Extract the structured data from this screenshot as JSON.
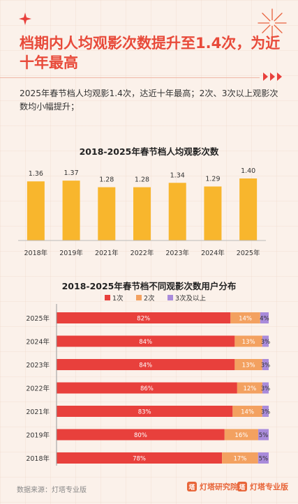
{
  "header": {
    "title": "档期内人均观影次数提升至1.4次，为近十年最高",
    "subtitle": "2025年春节档人均观影1.4次，达近十年最高；2次、3次以上观影次数均小幅提升；"
  },
  "chart_data": [
    {
      "type": "bar",
      "title": "2018-2025年春节档人均观影次数",
      "categories": [
        "2018年",
        "2019年",
        "2021年",
        "2022年",
        "2023年",
        "2024年",
        "2025年"
      ],
      "values": [
        1.36,
        1.37,
        1.28,
        1.28,
        1.34,
        1.29,
        1.4
      ],
      "value_labels": [
        "1.36",
        "1.37",
        "1.28",
        "1.28",
        "1.34",
        "1.29",
        "1.40"
      ],
      "colors": [
        "#f8b62d"
      ],
      "grid": false
    },
    {
      "type": "bar",
      "orientation": "horizontal",
      "stacked": "percent",
      "title": "2018-2025年春节档不同观影次数用户分布",
      "legend_position": "top",
      "categories": [
        "2025年",
        "2024年",
        "2023年",
        "2022年",
        "2021年",
        "2019年",
        "2018年"
      ],
      "series": [
        {
          "name": "1次",
          "color": "#e8403c",
          "values": [
            82,
            84,
            84,
            86,
            83,
            80,
            78
          ],
          "labels": [
            "82%",
            "84%",
            "84%",
            "86%",
            "83%",
            "80%",
            "78%"
          ]
        },
        {
          "name": "2次",
          "color": "#f3a160",
          "values": [
            14,
            13,
            13,
            12,
            14,
            16,
            17
          ],
          "labels": [
            "14%",
            "13%",
            "13%",
            "12%",
            "14%",
            "16%",
            "17%"
          ]
        },
        {
          "name": "3次及以上",
          "color": "#a98bdb",
          "values": [
            4,
            3,
            3,
            3,
            3,
            5,
            5
          ],
          "labels": [
            "4%",
            "3%",
            "3%",
            "3%",
            "3%",
            "5%",
            "5%"
          ]
        }
      ]
    }
  ],
  "footer": {
    "source": "数据来源：灯塔专业版",
    "brand1": "灯塔研究院",
    "brand2": "灯塔专业版"
  }
}
